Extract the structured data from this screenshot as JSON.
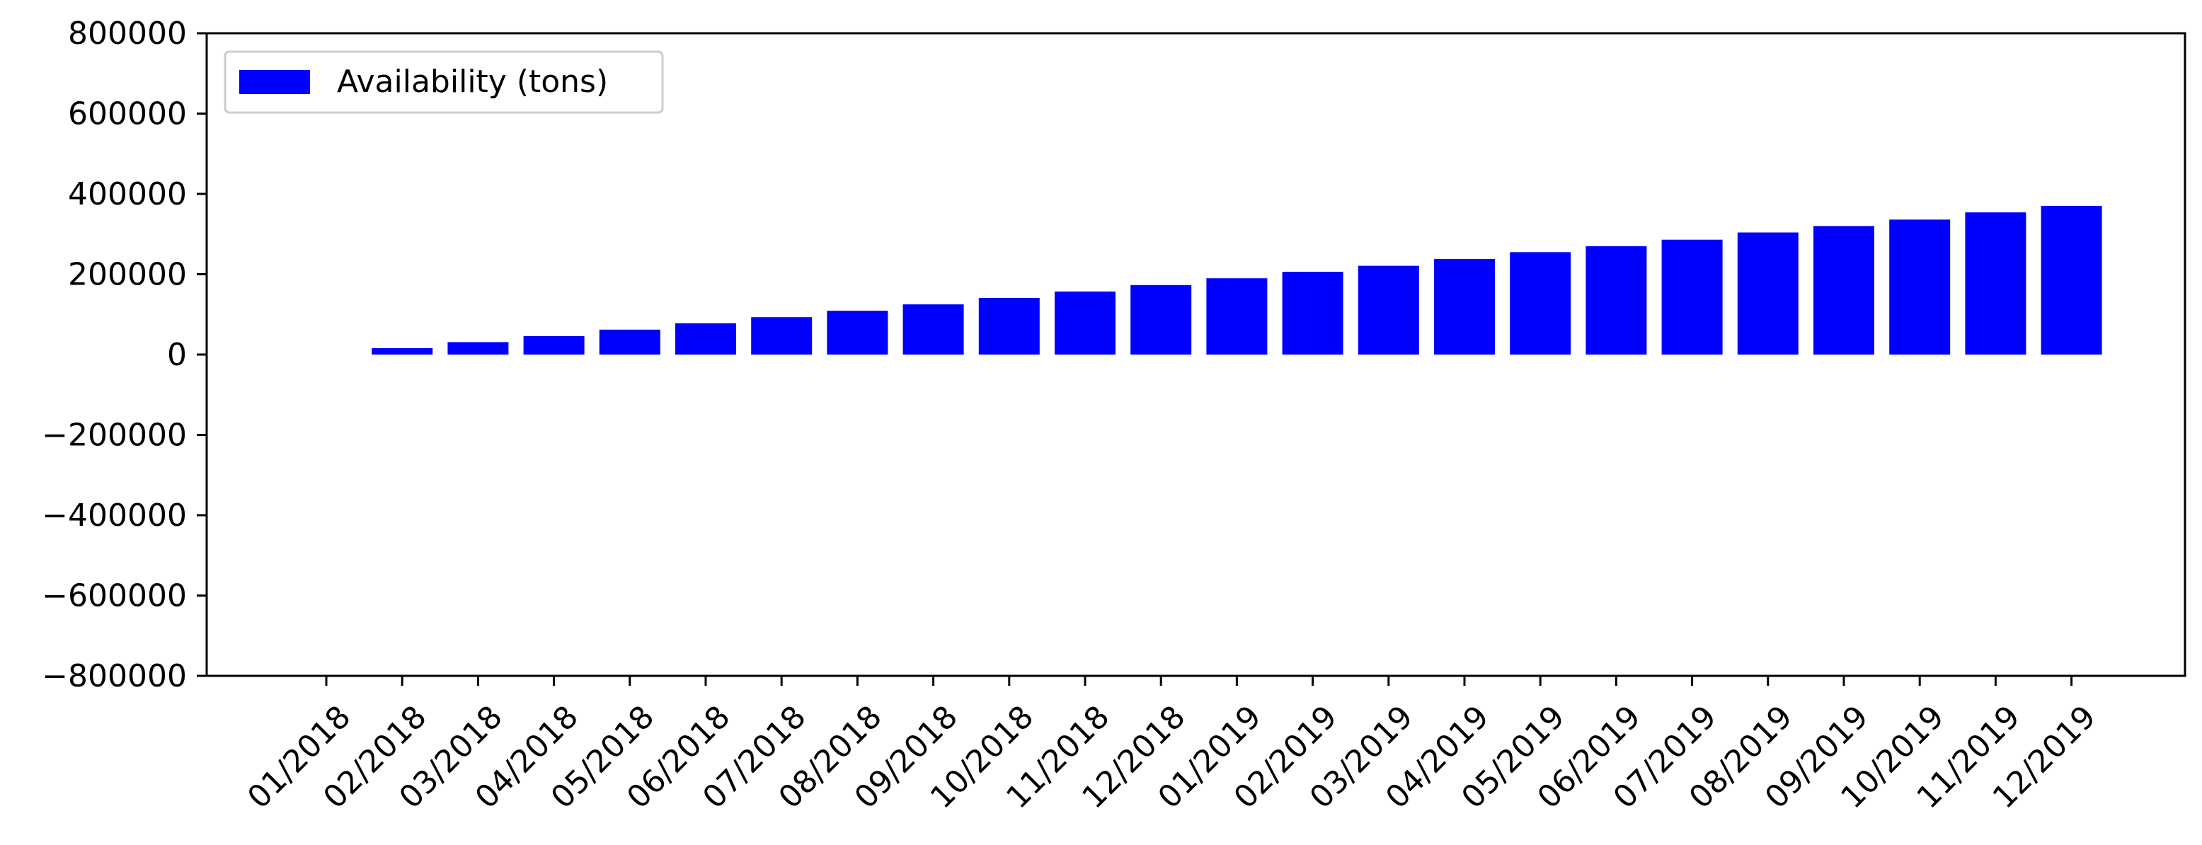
{
  "chart_data": {
    "type": "bar",
    "title": "",
    "xlabel": "",
    "ylabel": "",
    "categories": [
      "01/2018",
      "02/2018",
      "03/2018",
      "04/2018",
      "05/2018",
      "06/2018",
      "07/2018",
      "08/2018",
      "09/2018",
      "10/2018",
      "11/2018",
      "12/2018",
      "01/2019",
      "02/2019",
      "03/2019",
      "04/2019",
      "05/2019",
      "06/2019",
      "07/2019",
      "08/2019",
      "09/2019",
      "10/2019",
      "11/2019",
      "12/2019"
    ],
    "series": [
      {
        "name": "Availability (tons)",
        "color": "#0000ff",
        "values": [
          0,
          16000,
          31000,
          46000,
          62000,
          78000,
          93000,
          109000,
          125000,
          141000,
          157000,
          173000,
          190000,
          206000,
          221000,
          238000,
          255000,
          270000,
          286000,
          304000,
          320000,
          336000,
          354000,
          370000
        ]
      }
    ],
    "ylim": [
      -800000,
      800000
    ],
    "yticks": [
      "800000",
      "600000",
      "400000",
      "200000",
      "0",
      "−200000",
      "−400000",
      "−600000",
      "−800000"
    ],
    "ytick_values": [
      800000,
      600000,
      400000,
      200000,
      0,
      -200000,
      -400000,
      -600000,
      -800000
    ],
    "grid": false,
    "legend": "upper left"
  }
}
